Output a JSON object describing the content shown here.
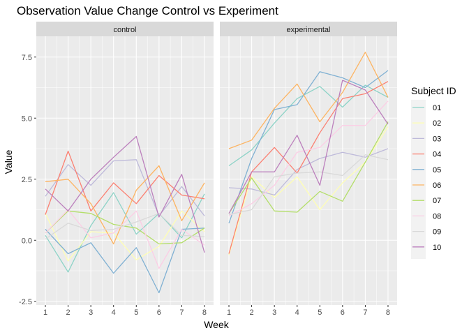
{
  "chart_data": {
    "type": "line",
    "title": "Observation Value Change Control vs Experiment",
    "xlabel": "Week",
    "ylabel": "Value",
    "x": [
      1,
      2,
      3,
      4,
      5,
      6,
      7,
      8
    ],
    "xlim": [
      0.6,
      8.4
    ],
    "ylim": [
      -2.65,
      8.35
    ],
    "yticks": [
      -2.5,
      0.0,
      2.5,
      5.0,
      7.5
    ],
    "ytick_labels": [
      "-2.5",
      "0.0",
      "2.5",
      "5.0",
      "7.5"
    ],
    "xtick_labels": [
      "1",
      "2",
      "3",
      "4",
      "5",
      "6",
      "7",
      "8"
    ],
    "grid": true,
    "legend": {
      "title": "Subject ID",
      "position": "right"
    },
    "facets": [
      {
        "label": "control",
        "series": [
          {
            "name": "01",
            "color": "#8DD3C7",
            "values": [
              0.2,
              -1.3,
              0.6,
              1.95,
              0.25,
              1.1,
              0.1,
              1.9
            ]
          },
          {
            "name": "02",
            "color": "#FFFFB3",
            "values": [
              1.1,
              -0.85,
              0.35,
              0.3,
              -0.8,
              -0.25,
              1.2,
              0.35
            ]
          },
          {
            "name": "03",
            "color": "#BEBADA",
            "values": [
              1.8,
              3.1,
              2.25,
              3.25,
              3.3,
              1.0,
              2.2,
              1.0
            ]
          },
          {
            "name": "04",
            "color": "#FB8072",
            "values": [
              1.05,
              3.65,
              1.2,
              2.35,
              1.5,
              2.65,
              1.85,
              1.7
            ]
          },
          {
            "name": "05",
            "color": "#80B1D3",
            "values": [
              0.45,
              -0.55,
              -0.1,
              -1.35,
              -0.3,
              -2.15,
              0.45,
              0.5
            ]
          },
          {
            "name": "06",
            "color": "#FDB462",
            "values": [
              2.4,
              2.5,
              1.5,
              -0.15,
              2.05,
              3.05,
              0.8,
              2.35
            ]
          },
          {
            "name": "07",
            "color": "#B3DE69",
            "values": [
              0.3,
              1.2,
              1.1,
              0.65,
              0.5,
              -0.15,
              -0.1,
              0.5
            ]
          },
          {
            "name": "08",
            "color": "#FCCDE5",
            "values": [
              0.3,
              1.25,
              0.1,
              0.3,
              1.2,
              -1.15,
              0.45,
              -0.2
            ]
          },
          {
            "name": "09",
            "color": "#D9D9D9",
            "values": [
              0.05,
              0.7,
              0.4,
              0.45,
              0.75,
              1.1,
              0.2,
              0.15
            ]
          },
          {
            "name": "10",
            "color": "#BC80BD",
            "values": [
              2.1,
              1.2,
              2.5,
              3.4,
              4.25,
              0.95,
              2.7,
              -0.5
            ]
          }
        ]
      },
      {
        "label": "experimental",
        "series": [
          {
            "name": "01",
            "color": "#8DD3C7",
            "values": [
              3.05,
              3.7,
              4.8,
              5.8,
              6.3,
              5.45,
              6.35,
              5.85
            ]
          },
          {
            "name": "02",
            "color": "#FFFFB3",
            "values": [
              -0.6,
              2.6,
              1.75,
              2.6,
              1.25,
              2.35,
              3.2,
              4.65
            ]
          },
          {
            "name": "03",
            "color": "#BEBADA",
            "values": [
              2.15,
              2.1,
              1.85,
              2.9,
              3.35,
              3.6,
              3.4,
              3.75
            ]
          },
          {
            "name": "04",
            "color": "#FB8072",
            "values": [
              -0.55,
              2.8,
              3.8,
              2.75,
              4.4,
              5.8,
              6.0,
              6.5
            ]
          },
          {
            "name": "05",
            "color": "#80B1D3",
            "values": [
              0.7,
              3.35,
              5.35,
              5.55,
              6.9,
              6.65,
              6.25,
              6.95
            ]
          },
          {
            "name": "06",
            "color": "#FDB462",
            "values": [
              3.75,
              4.1,
              5.4,
              6.4,
              4.85,
              6.05,
              7.7,
              5.85
            ]
          },
          {
            "name": "07",
            "color": "#B3DE69",
            "values": [
              1.1,
              2.55,
              1.2,
              1.15,
              2.0,
              1.6,
              3.2,
              4.85
            ]
          },
          {
            "name": "08",
            "color": "#FCCDE5",
            "values": [
              1.0,
              1.5,
              2.25,
              3.6,
              3.8,
              4.7,
              4.7,
              5.7
            ]
          },
          {
            "name": "09",
            "color": "#D9D9D9",
            "values": [
              1.05,
              1.25,
              2.6,
              2.75,
              2.8,
              2.65,
              3.5,
              3.3
            ]
          },
          {
            "name": "10",
            "color": "#BC80BD",
            "values": [
              1.1,
              2.8,
              2.8,
              4.3,
              2.25,
              6.55,
              6.15,
              4.75
            ]
          }
        ]
      }
    ]
  }
}
